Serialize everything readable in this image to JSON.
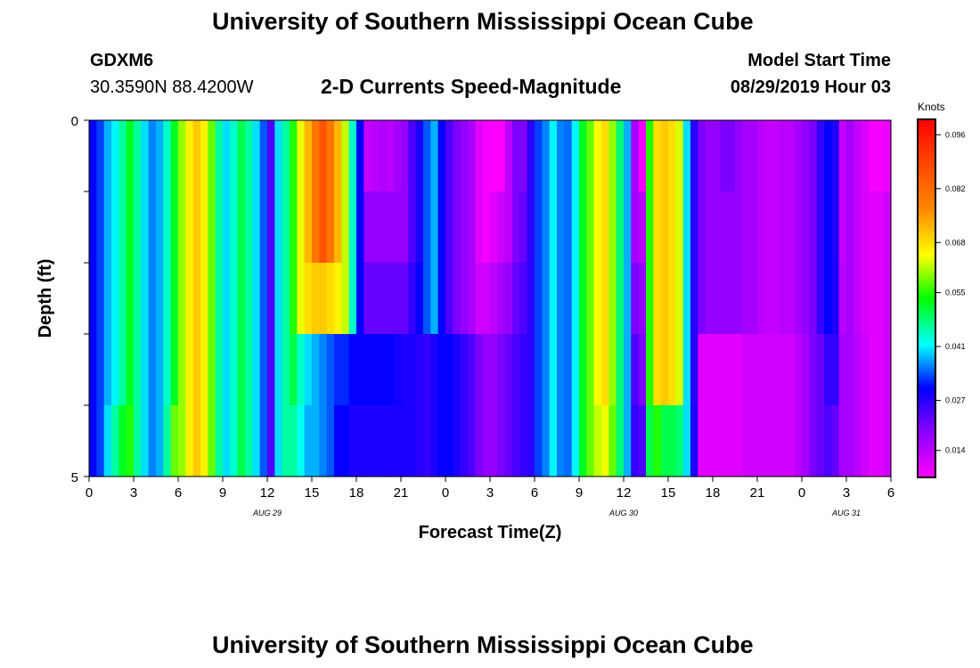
{
  "header": {
    "title": "University of Southern Mississippi Ocean Cube",
    "station": "GDXM6",
    "location": "30.3590N 88.4200W",
    "subtitle": "2-D Currents Speed-Magnitude",
    "model_label": "Model Start Time",
    "model_time": "08/29/2019 Hour 03"
  },
  "footer": {
    "title": "University of Southern Mississippi Ocean Cube"
  },
  "chart_data": {
    "type": "heatmap",
    "xlabel": "Forecast Time(Z)",
    "ylabel": "Depth (ft)",
    "x_hours": [
      0,
      54
    ],
    "ylim": [
      0,
      5
    ],
    "x_tick_labels": [
      "0",
      "3",
      "6",
      "9",
      "12",
      "15",
      "18",
      "21",
      "0",
      "3",
      "6",
      "9",
      "12",
      "15",
      "18",
      "21",
      "0",
      "3",
      "6"
    ],
    "y_tick_labels": [
      "0",
      "5"
    ],
    "date_labels": [
      {
        "label": "AUG 29",
        "hour": 12
      },
      {
        "label": "AUG 30",
        "hour": 36
      },
      {
        "label": "AUG 31",
        "hour": 51
      }
    ],
    "colorbar": {
      "title": "Knots",
      "ticks": [
        "0.096",
        "0.082",
        "0.068",
        "0.055",
        "0.041",
        "0.027",
        "0.014"
      ],
      "range": [
        0.007,
        0.1
      ]
    },
    "depth_rows": 5,
    "rows": [
      [
        0.03,
        0.033,
        0.038,
        0.041,
        0.046,
        0.052,
        0.046,
        0.04,
        0.036,
        0.038,
        0.044,
        0.052,
        0.06,
        0.066,
        0.07,
        0.066,
        0.058,
        0.046,
        0.04,
        0.044,
        0.05,
        0.046,
        0.04,
        0.034,
        0.024,
        0.04,
        0.046,
        0.055,
        0.064,
        0.072,
        0.08,
        0.086,
        0.08,
        0.072,
        0.062,
        0.044,
        0.03,
        0.013,
        0.014,
        0.015,
        0.014,
        0.016,
        0.018,
        0.024,
        0.028,
        0.034,
        0.038,
        0.03,
        0.024,
        0.02,
        0.018,
        0.016,
        0.01,
        0.008,
        0.006,
        0.006,
        0.014,
        0.02,
        0.02,
        0.027,
        0.033,
        0.036,
        0.041,
        0.036,
        0.035,
        0.041,
        0.052,
        0.058,
        0.065,
        0.068,
        0.06,
        0.048,
        0.038,
        0.016,
        0.008,
        0.055,
        0.068,
        0.07,
        0.068,
        0.063,
        0.04,
        0.027,
        0.02,
        0.018,
        0.018,
        0.02,
        0.02,
        0.018,
        0.016,
        0.016,
        0.014,
        0.013,
        0.013,
        0.014,
        0.014,
        0.016,
        0.018,
        0.02,
        0.026,
        0.03,
        0.028,
        0.013,
        0.016,
        0.013,
        0.011,
        0.008,
        0.008,
        0.009
      ],
      [
        0.03,
        0.033,
        0.038,
        0.041,
        0.046,
        0.052,
        0.046,
        0.04,
        0.036,
        0.038,
        0.044,
        0.052,
        0.06,
        0.066,
        0.07,
        0.066,
        0.058,
        0.046,
        0.04,
        0.044,
        0.05,
        0.046,
        0.04,
        0.034,
        0.024,
        0.04,
        0.046,
        0.055,
        0.064,
        0.072,
        0.08,
        0.086,
        0.08,
        0.072,
        0.062,
        0.044,
        0.03,
        0.018,
        0.018,
        0.018,
        0.018,
        0.018,
        0.018,
        0.024,
        0.028,
        0.034,
        0.038,
        0.03,
        0.024,
        0.02,
        0.018,
        0.016,
        0.01,
        0.008,
        0.01,
        0.012,
        0.014,
        0.02,
        0.022,
        0.027,
        0.033,
        0.036,
        0.041,
        0.036,
        0.035,
        0.041,
        0.052,
        0.058,
        0.065,
        0.068,
        0.06,
        0.048,
        0.038,
        0.016,
        0.014,
        0.055,
        0.068,
        0.07,
        0.068,
        0.063,
        0.04,
        0.027,
        0.02,
        0.018,
        0.018,
        0.018,
        0.018,
        0.018,
        0.016,
        0.016,
        0.014,
        0.013,
        0.013,
        0.014,
        0.014,
        0.016,
        0.018,
        0.02,
        0.026,
        0.03,
        0.028,
        0.013,
        0.016,
        0.013,
        0.011,
        0.01,
        0.01,
        0.012
      ],
      [
        0.03,
        0.033,
        0.038,
        0.041,
        0.046,
        0.052,
        0.046,
        0.04,
        0.036,
        0.038,
        0.044,
        0.052,
        0.06,
        0.066,
        0.07,
        0.066,
        0.058,
        0.046,
        0.04,
        0.044,
        0.05,
        0.046,
        0.04,
        0.034,
        0.024,
        0.04,
        0.046,
        0.055,
        0.064,
        0.068,
        0.07,
        0.07,
        0.068,
        0.066,
        0.062,
        0.044,
        0.03,
        0.022,
        0.022,
        0.022,
        0.022,
        0.022,
        0.022,
        0.026,
        0.03,
        0.034,
        0.038,
        0.03,
        0.024,
        0.02,
        0.018,
        0.016,
        0.012,
        0.012,
        0.014,
        0.016,
        0.018,
        0.022,
        0.024,
        0.027,
        0.033,
        0.036,
        0.041,
        0.036,
        0.035,
        0.041,
        0.052,
        0.058,
        0.065,
        0.068,
        0.06,
        0.048,
        0.038,
        0.02,
        0.018,
        0.055,
        0.068,
        0.07,
        0.068,
        0.063,
        0.04,
        0.027,
        0.02,
        0.018,
        0.018,
        0.018,
        0.018,
        0.018,
        0.016,
        0.016,
        0.014,
        0.013,
        0.013,
        0.014,
        0.014,
        0.016,
        0.018,
        0.02,
        0.026,
        0.03,
        0.028,
        0.014,
        0.016,
        0.013,
        0.011,
        0.01,
        0.01,
        0.012
      ],
      [
        0.03,
        0.033,
        0.038,
        0.041,
        0.046,
        0.052,
        0.046,
        0.04,
        0.036,
        0.038,
        0.044,
        0.052,
        0.06,
        0.066,
        0.07,
        0.066,
        0.058,
        0.046,
        0.04,
        0.044,
        0.05,
        0.046,
        0.04,
        0.034,
        0.024,
        0.04,
        0.046,
        0.05,
        0.044,
        0.04,
        0.038,
        0.036,
        0.034,
        0.032,
        0.032,
        0.03,
        0.03,
        0.03,
        0.03,
        0.03,
        0.03,
        0.029,
        0.028,
        0.028,
        0.027,
        0.026,
        0.028,
        0.03,
        0.03,
        0.028,
        0.026,
        0.024,
        0.02,
        0.018,
        0.018,
        0.02,
        0.022,
        0.024,
        0.026,
        0.027,
        0.033,
        0.036,
        0.041,
        0.036,
        0.035,
        0.041,
        0.052,
        0.058,
        0.065,
        0.068,
        0.06,
        0.048,
        0.038,
        0.024,
        0.02,
        0.055,
        0.068,
        0.07,
        0.068,
        0.063,
        0.04,
        0.027,
        0.01,
        0.01,
        0.01,
        0.01,
        0.01,
        0.01,
        0.012,
        0.012,
        0.012,
        0.012,
        0.012,
        0.012,
        0.012,
        0.014,
        0.016,
        0.02,
        0.022,
        0.026,
        0.026,
        0.016,
        0.016,
        0.014,
        0.012,
        0.01,
        0.01,
        0.012
      ],
      [
        0.03,
        0.033,
        0.04,
        0.046,
        0.052,
        0.055,
        0.046,
        0.04,
        0.036,
        0.038,
        0.046,
        0.058,
        0.06,
        0.066,
        0.07,
        0.066,
        0.058,
        0.046,
        0.04,
        0.044,
        0.05,
        0.046,
        0.04,
        0.034,
        0.024,
        0.04,
        0.046,
        0.046,
        0.042,
        0.038,
        0.038,
        0.036,
        0.034,
        0.03,
        0.03,
        0.028,
        0.028,
        0.028,
        0.028,
        0.028,
        0.028,
        0.028,
        0.028,
        0.028,
        0.027,
        0.026,
        0.028,
        0.03,
        0.03,
        0.028,
        0.026,
        0.024,
        0.02,
        0.018,
        0.018,
        0.02,
        0.022,
        0.024,
        0.026,
        0.027,
        0.033,
        0.036,
        0.041,
        0.036,
        0.035,
        0.041,
        0.052,
        0.058,
        0.062,
        0.064,
        0.058,
        0.048,
        0.038,
        0.026,
        0.024,
        0.05,
        0.055,
        0.05,
        0.05,
        0.048,
        0.04,
        0.028,
        0.01,
        0.01,
        0.01,
        0.01,
        0.01,
        0.01,
        0.012,
        0.012,
        0.012,
        0.012,
        0.012,
        0.012,
        0.012,
        0.014,
        0.016,
        0.02,
        0.022,
        0.024,
        0.022,
        0.016,
        0.016,
        0.014,
        0.012,
        0.01,
        0.01,
        0.012
      ]
    ]
  }
}
